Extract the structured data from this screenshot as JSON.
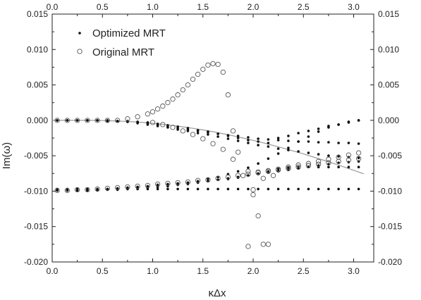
{
  "chart_data": {
    "type": "scatter",
    "xlabel": "κΔx",
    "ylabel": "Im(ω)",
    "xlim": [
      0.0,
      3.2
    ],
    "ylim": [
      -0.02,
      0.015
    ],
    "x_ticks": [
      "0.0",
      "0.5",
      "1.0",
      "1.5",
      "2.0",
      "2.5",
      "3.0"
    ],
    "y_ticks_left": [
      "0.015",
      "0.010",
      "0.005",
      "0.000",
      "-0.005",
      "-0.010",
      "-0.015",
      "-0.020"
    ],
    "y_ticks_right": [
      "0.015",
      "0.010",
      "0.005",
      "0.000",
      "-0.005",
      "-0.010",
      "-0.015",
      "-0.020"
    ],
    "tick_values_x": [
      0,
      0.5,
      1.0,
      1.5,
      2.0,
      2.5,
      3.0
    ],
    "tick_values_y": [
      0.015,
      0.01,
      0.005,
      0.0,
      -0.005,
      -0.01,
      -0.015,
      -0.02
    ],
    "legend": {
      "placement": "top-left",
      "items": [
        {
          "label": "Optimized MRT",
          "marker": "filled-dot"
        },
        {
          "label": "Original MRT",
          "marker": "open-circle"
        }
      ]
    },
    "series": [
      {
        "name": "Optimized MRT",
        "marker": "filled-dot",
        "branches": [
          {
            "x": [
              0.05,
              0.15,
              0.25,
              0.35,
              0.45,
              0.55,
              0.65,
              0.75,
              0.85,
              0.95,
              1.05,
              1.15,
              1.25,
              1.35,
              1.45,
              1.55,
              1.65,
              1.75,
              1.85,
              1.95,
              2.05,
              2.15,
              2.25,
              2.35,
              2.45,
              2.55,
              2.65,
              2.75,
              2.85,
              2.95,
              3.05
            ],
            "y": [
              0.0,
              0.0,
              0.0,
              0.0,
              0.0,
              0.0,
              -0.0001,
              -0.0001,
              -0.0002,
              -0.0003,
              -0.0005,
              -0.0007,
              -0.0009,
              -0.0011,
              -0.0014,
              -0.0016,
              -0.0019,
              -0.0022,
              -0.0025,
              -0.0028,
              -0.003,
              -0.0032,
              -0.0025,
              -0.0022,
              -0.0018,
              -0.0015,
              -0.0012,
              -0.0008,
              -0.0006,
              -0.0003,
              0.0
            ]
          },
          {
            "x": [
              0.05,
              0.15,
              0.25,
              0.35,
              0.45,
              0.55,
              0.65,
              0.75,
              0.85,
              0.95,
              1.05,
              1.15,
              1.25,
              1.35,
              1.45,
              1.55,
              1.65,
              1.75,
              1.85,
              1.95,
              2.05,
              2.15,
              2.25,
              2.35,
              2.45,
              2.55,
              2.65,
              2.75,
              2.85,
              2.95,
              3.05
            ],
            "y": [
              0.0,
              0.0,
              0.0,
              0.0,
              0.0,
              0.0,
              -0.0001,
              -0.0002,
              -0.0003,
              -0.0004,
              -0.0007,
              -0.0009,
              -0.0011,
              -0.0013,
              -0.0015,
              -0.0017,
              -0.0019,
              -0.0021,
              -0.0022,
              -0.0024,
              -0.0026,
              -0.0027,
              -0.0028,
              -0.0029,
              -0.003,
              -0.003,
              -0.0031,
              -0.0031,
              -0.0032,
              -0.0032,
              -0.0033
            ]
          },
          {
            "x": [
              0.05,
              0.15,
              0.25,
              0.35,
              0.45,
              0.55,
              0.65,
              0.75,
              0.85,
              0.95,
              1.05,
              1.15,
              1.25,
              1.35,
              1.45,
              1.55,
              1.65,
              1.75,
              1.85,
              1.95,
              2.05,
              2.15,
              2.25,
              2.35,
              2.45,
              2.55,
              2.65,
              2.75,
              2.85,
              2.95,
              3.05
            ],
            "y": [
              0.0,
              0.0,
              0.0,
              0.0,
              0.0,
              -0.0001,
              -0.0001,
              -0.0002,
              -0.0004,
              -0.0006,
              -0.0008,
              -0.001,
              -0.0013,
              -0.0015,
              -0.0018,
              -0.002,
              -0.0023,
              -0.0026,
              -0.0029,
              -0.0032,
              -0.0035,
              -0.0037,
              -0.004,
              -0.0042,
              -0.0044,
              -0.0046,
              -0.0048,
              -0.005,
              -0.0051,
              -0.0052,
              -0.0053
            ]
          },
          {
            "x": [
              0.05,
              0.15,
              0.25,
              0.35,
              0.45,
              0.55,
              0.65,
              0.75,
              0.85,
              0.95,
              1.05,
              1.15,
              1.25,
              1.35,
              1.45,
              1.55,
              1.65,
              1.75,
              1.85,
              1.95,
              2.05,
              2.15,
              2.25,
              2.35,
              2.45,
              2.55,
              2.65,
              2.75,
              2.85,
              2.95,
              3.05
            ],
            "y": [
              -0.0097,
              -0.0097,
              -0.0097,
              -0.0097,
              -0.0097,
              -0.0097,
              -0.0097,
              -0.0097,
              -0.0097,
              -0.0097,
              -0.0097,
              -0.0097,
              -0.0097,
              -0.0097,
              -0.0097,
              -0.0097,
              -0.0097,
              -0.0097,
              -0.0097,
              -0.0097,
              -0.0097,
              -0.0097,
              -0.0097,
              -0.0097,
              -0.0097,
              -0.0097,
              -0.0097,
              -0.0097,
              -0.0097,
              -0.0097,
              -0.0097
            ]
          },
          {
            "x": [
              0.05,
              0.15,
              0.25,
              0.35,
              0.45,
              0.55,
              0.65,
              0.75,
              0.85,
              0.95,
              1.05,
              1.15,
              1.25,
              1.35,
              1.45,
              1.55,
              1.65,
              1.75,
              1.85,
              1.95,
              2.05,
              2.15,
              2.25,
              2.35,
              2.45,
              2.55,
              2.65,
              2.75,
              2.85,
              2.95,
              3.05
            ],
            "y": [
              -0.0099,
              -0.0099,
              -0.0099,
              -0.0098,
              -0.0098,
              -0.0097,
              -0.0096,
              -0.0095,
              -0.0094,
              -0.0093,
              -0.0091,
              -0.009,
              -0.0089,
              -0.0088,
              -0.0087,
              -0.0086,
              -0.0084,
              -0.0083,
              -0.0081,
              -0.0078,
              -0.0075,
              -0.0072,
              -0.0069,
              -0.0067,
              -0.0066,
              -0.0066,
              -0.0066,
              -0.0066,
              -0.0066,
              -0.0066,
              -0.0066
            ]
          },
          {
            "x": [
              0.05,
              0.15,
              0.25,
              0.35,
              0.45,
              0.55,
              0.65,
              0.75,
              0.85,
              0.95,
              1.05,
              1.15,
              1.25,
              1.35,
              1.45,
              1.55,
              1.65,
              1.75,
              1.85,
              1.95,
              2.05,
              2.15,
              2.25,
              2.35,
              2.45,
              2.55,
              2.65,
              2.75,
              2.85,
              2.95,
              3.05
            ],
            "y": [
              -0.0099,
              -0.0099,
              -0.0099,
              -0.0098,
              -0.0098,
              -0.0097,
              -0.0097,
              -0.0096,
              -0.0095,
              -0.0094,
              -0.0093,
              -0.0092,
              -0.009,
              -0.0088,
              -0.0086,
              -0.0083,
              -0.008,
              -0.0076,
              -0.0072,
              -0.0067,
              -0.0061,
              -0.0054,
              -0.0047,
              -0.0039,
              -0.003,
              -0.0023,
              -0.0016,
              -0.001,
              -0.0006,
              -0.0002,
              0.0
            ]
          },
          {
            "x": [
              0.05,
              0.15,
              0.25,
              0.35,
              0.45,
              0.55,
              0.65,
              0.75,
              0.85,
              0.95,
              1.05,
              1.15,
              1.25,
              1.35,
              1.45,
              1.55,
              1.65,
              1.75,
              1.85,
              1.95,
              2.05,
              2.15,
              2.25,
              2.35,
              2.45,
              2.55,
              2.65,
              2.75,
              2.85,
              2.95,
              3.05
            ],
            "y": [
              -0.0099,
              -0.0099,
              -0.0099,
              -0.0099,
              -0.0099,
              -0.0098,
              -0.0098,
              -0.0097,
              -0.0096,
              -0.0095,
              -0.0094,
              -0.0093,
              -0.0091,
              -0.009,
              -0.0088,
              -0.0086,
              -0.0084,
              -0.0082,
              -0.008,
              -0.0078,
              -0.0076,
              -0.0074,
              -0.0072,
              -0.007,
              -0.0068,
              -0.0066,
              -0.0064,
              -0.0062,
              -0.006,
              -0.0059,
              -0.0058
            ]
          }
        ]
      },
      {
        "name": "Original MRT",
        "marker": "open-circle",
        "x": [
          0.05,
          0.15,
          0.25,
          0.35,
          0.45,
          0.55,
          0.65,
          0.75,
          0.85,
          0.95,
          1.0,
          1.05,
          1.1,
          1.15,
          1.2,
          1.25,
          1.3,
          1.35,
          1.4,
          1.45,
          1.5,
          1.55,
          1.6,
          1.65,
          1.7,
          1.75,
          1.8,
          1.85,
          1.95,
          2.05,
          2.15,
          2.25,
          2.35,
          2.45,
          2.55,
          2.65,
          2.75,
          2.85,
          2.95,
          3.05,
          0.05,
          0.15,
          0.25,
          0.35,
          0.45,
          0.55,
          0.65,
          0.75,
          0.85,
          0.95,
          1.05,
          1.15,
          1.25,
          1.35,
          1.45,
          1.55,
          1.65,
          1.75,
          1.85,
          1.95,
          2.05,
          2.15,
          2.25,
          2.35,
          2.45,
          2.55,
          2.65,
          2.75,
          2.85,
          2.95,
          3.05,
          1.0,
          1.1,
          1.2,
          1.3,
          1.4,
          1.5,
          1.6,
          1.7,
          1.8,
          1.9,
          2.0,
          2.1,
          2.2,
          1.95,
          2.0,
          2.05,
          2.1,
          2.15
        ],
        "y": [
          0.0,
          0.0,
          0.0,
          0.0,
          0.0,
          0.0,
          0.0,
          0.0002,
          0.0005,
          0.0009,
          0.0012,
          0.0016,
          0.002,
          0.0025,
          0.003,
          0.0036,
          0.0043,
          0.005,
          0.0058,
          0.0065,
          0.0072,
          0.0078,
          0.008,
          0.0079,
          0.0068,
          0.0036,
          -0.0015,
          -0.0045,
          -0.0072,
          -0.0073,
          -0.0071,
          -0.0069,
          -0.0066,
          -0.0063,
          -0.0061,
          -0.0058,
          -0.0055,
          -0.0052,
          -0.0049,
          -0.0046,
          -0.0099,
          -0.0099,
          -0.0098,
          -0.0098,
          -0.0097,
          -0.0096,
          -0.0095,
          -0.0094,
          -0.0093,
          -0.0092,
          -0.009,
          -0.0089,
          -0.0088,
          -0.0087,
          -0.0085,
          -0.0084,
          -0.0082,
          -0.008,
          -0.0078,
          -0.0076,
          -0.0074,
          -0.0072,
          -0.007,
          -0.0068,
          -0.0066,
          -0.0064,
          -0.0062,
          -0.006,
          -0.0058,
          -0.0056,
          -0.0054,
          -0.0003,
          -0.0006,
          -0.001,
          -0.0015,
          -0.002,
          -0.0026,
          -0.0033,
          -0.0041,
          -0.0055,
          -0.0078,
          -0.0098,
          -0.0082,
          -0.0078,
          -0.0178,
          -0.0105,
          -0.0135,
          -0.0175,
          -0.0175
        ]
      },
      {
        "name": "",
        "marker": "line",
        "color": "#999999",
        "x": [
          0.0,
          0.1,
          0.2,
          0.3,
          0.4,
          0.5,
          0.6,
          0.7,
          0.8,
          0.9,
          1.0,
          1.1,
          1.2,
          1.3,
          1.4,
          1.5,
          1.6,
          1.7,
          1.8,
          1.9,
          2.0,
          2.1,
          2.2,
          2.3,
          2.4,
          2.5,
          2.6,
          2.7,
          2.8,
          2.9,
          3.0,
          3.1
        ],
        "y": [
          0.0,
          0.0,
          0.0,
          0.0,
          0.0,
          -3e-05,
          -7e-05,
          -0.00013,
          -0.0002,
          -0.0003,
          -0.00042,
          -0.00057,
          -0.00073,
          -0.00092,
          -0.00113,
          -0.00136,
          -0.00161,
          -0.00189,
          -0.00218,
          -0.0025,
          -0.00283,
          -0.00318,
          -0.00355,
          -0.00393,
          -0.00433,
          -0.00475,
          -0.00518,
          -0.00563,
          -0.00609,
          -0.00656,
          -0.00705,
          -0.00755
        ]
      }
    ],
    "grid": false,
    "colors": {
      "markers": "#111111",
      "line": "#999999",
      "axes": "#222222"
    }
  }
}
